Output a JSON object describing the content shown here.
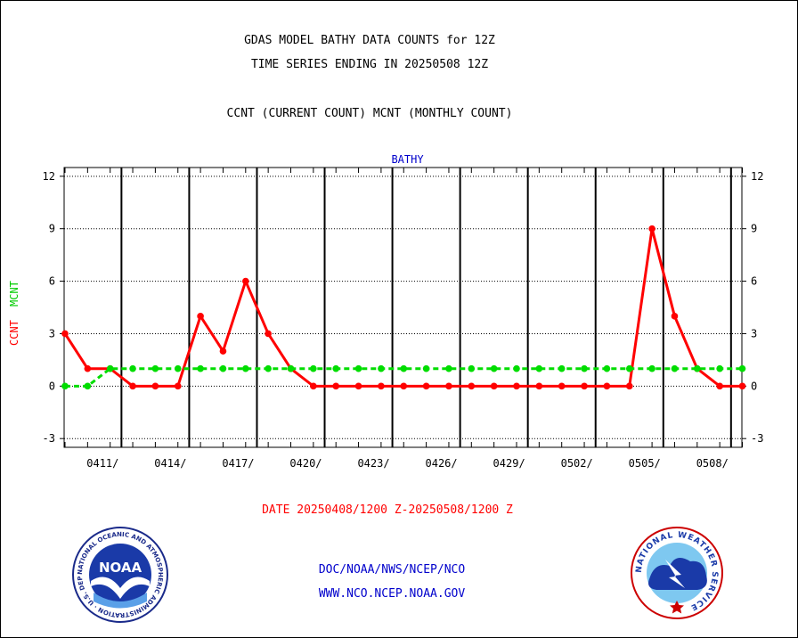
{
  "header": {
    "line1": "GDAS MODEL BATHY DATA COUNTS for 12Z",
    "line2": "TIME SERIES ENDING IN 20250508 12Z",
    "line3": "CCNT (CURRENT COUNT) MCNT (MONTHLY COUNT)"
  },
  "chart_data": {
    "type": "line",
    "title": "BATHY",
    "ylabel_ccnt": "CCNT",
    "ylabel_mcnt": "MCNT",
    "xlabel": "DATE 20250408/1200 Z-20250508/1200 Z",
    "ylim": [
      -3.5,
      12.5
    ],
    "yticks": [
      -3,
      0,
      3,
      6,
      9,
      12
    ],
    "xlim": [
      0,
      30
    ],
    "xtick_labels": [
      {
        "day": 2.5,
        "label": "0411/"
      },
      {
        "day": 5.5,
        "label": "0414/"
      },
      {
        "day": 8.5,
        "label": "0417/"
      },
      {
        "day": 11.5,
        "label": "0420/"
      },
      {
        "day": 14.5,
        "label": "0423/"
      },
      {
        "day": 17.5,
        "label": "0426/"
      },
      {
        "day": 20.5,
        "label": "0429/"
      },
      {
        "day": 23.5,
        "label": "0502/"
      },
      {
        "day": 26.5,
        "label": "0505/"
      },
      {
        "day": 29.5,
        "label": "0508/"
      }
    ],
    "grid": true,
    "series": [
      {
        "name": "CCNT",
        "color": "#ff0000",
        "values": [
          3,
          1,
          1,
          0,
          0,
          0,
          4,
          2,
          6,
          3,
          1,
          0,
          0,
          0,
          0,
          0,
          0,
          0,
          0,
          0,
          0,
          0,
          0,
          0,
          0,
          0,
          9,
          4,
          1,
          0,
          0
        ]
      },
      {
        "name": "MCNT",
        "color": "#00dd00",
        "values": [
          0,
          0,
          1,
          1,
          1,
          1,
          1,
          1,
          1,
          1,
          1,
          1,
          1,
          1,
          1,
          1,
          1,
          1,
          1,
          1,
          1,
          1,
          1,
          1,
          1,
          1,
          1,
          1,
          1,
          1,
          1
        ]
      }
    ]
  },
  "footer": {
    "org": "DOC/NOAA/NWS/NCEP/NCO",
    "url": "WWW.NCO.NCEP.NOAA.GOV"
  },
  "logos": {
    "noaa_text": "NOAA",
    "noaa_ring": "NATIONAL OCEANIC AND ATMOSPHERIC ADMINISTRATION · U.S. DEPARTMENT OF COMMERCE ·",
    "nws_ring": "NATIONAL WEATHER SERVICE"
  }
}
